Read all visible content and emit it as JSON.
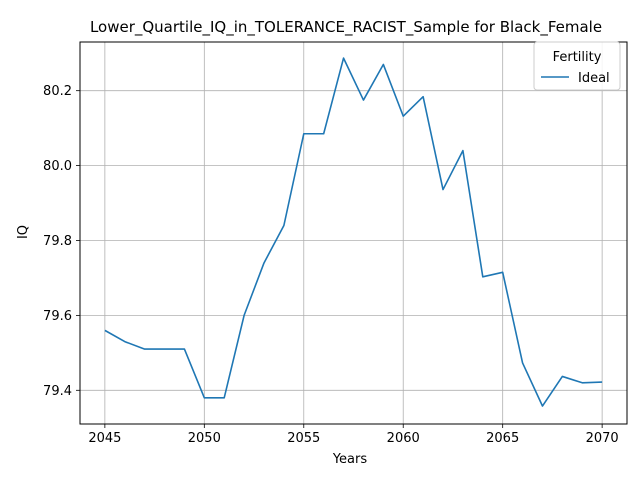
{
  "chart_data": {
    "type": "line",
    "title": "Lower_Quartile_IQ_in_TOLERANCE_RACIST_Sample for Black_Female",
    "xlabel": "Years",
    "ylabel": "IQ",
    "xlim": [
      2043.75,
      2071.25
    ],
    "ylim": [
      79.31,
      80.33
    ],
    "xticks": [
      2045,
      2050,
      2055,
      2060,
      2065,
      2070
    ],
    "yticks": [
      79.4,
      79.6,
      79.8,
      80.0,
      80.2
    ],
    "grid": true,
    "legend": {
      "title": "Fertility",
      "placement": "top-right"
    },
    "series": [
      {
        "name": "Ideal",
        "color": "#1f77b4",
        "x": [
          2045,
          2046,
          2047,
          2048,
          2049,
          2050,
          2051,
          2052,
          2053,
          2054,
          2055,
          2056,
          2057,
          2058,
          2059,
          2060,
          2061,
          2062,
          2063,
          2064,
          2065,
          2066,
          2067,
          2068,
          2069,
          2070
        ],
        "y": [
          79.56,
          79.53,
          79.51,
          79.51,
          79.51,
          79.38,
          79.38,
          79.6,
          79.74,
          79.84,
          80.085,
          80.085,
          80.287,
          80.175,
          80.27,
          80.132,
          80.184,
          79.936,
          80.04,
          79.703,
          79.715,
          79.473,
          79.358,
          79.437,
          79.42,
          79.422
        ]
      }
    ]
  }
}
